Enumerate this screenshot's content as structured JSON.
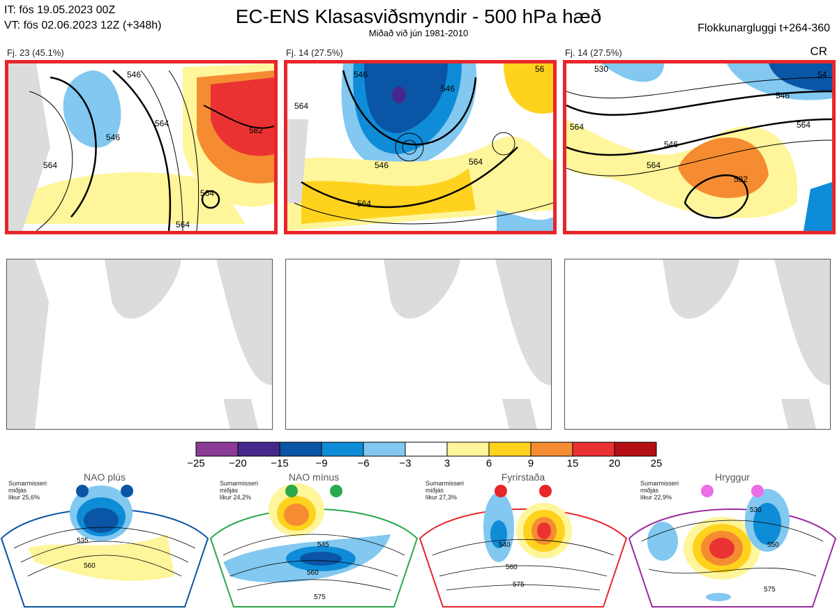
{
  "header": {
    "it_line": "IT: fös 19.05.2023 00Z",
    "vt_line": "VT: fös 02.06.2023 12Z  (+348h)",
    "title": "EC-ENS Klasasviðsmyndir - 500 hPa hæð",
    "subtitle": "Miðað við jún 1981-2010",
    "window": "Flokkunargluggi t+264-360",
    "cr": "CR"
  },
  "panels": [
    {
      "label": "Fj. 23 (45.1%)",
      "highlighted": true,
      "contour_labels": [
        "546",
        "546",
        "564",
        "564",
        "582",
        "564",
        "564"
      ]
    },
    {
      "label": "Fj. 14 (27.5%)",
      "highlighted": true,
      "contour_labels": [
        "546",
        "546",
        "546",
        "564",
        "564",
        "564",
        "56"
      ]
    },
    {
      "label": "Fj. 14 (27.5%)",
      "highlighted": true,
      "contour_labels": [
        "546",
        "564",
        "564",
        "546",
        "564",
        "582",
        "530",
        "54"
      ]
    }
  ],
  "colorbar": {
    "ticks": [
      "−25",
      "−20",
      "−15",
      "−9",
      "−6",
      "−3",
      "3",
      "6",
      "9",
      "15",
      "20",
      "25"
    ],
    "colors": [
      "#8c3c96",
      "#46288c",
      "#0a55a5",
      "#0f8cd7",
      "#82c8f0",
      "#ffffff",
      "#fff59b",
      "#ffd21e",
      "#f58c32",
      "#eb3232",
      "#b40f14"
    ]
  },
  "regimes": [
    {
      "title": "NAO plús",
      "season": "Sumarmisseri",
      "mean": "miðjás",
      "likelihood": "líkur 25,6%",
      "color": "#0a55a5",
      "contours": [
        "535",
        "560"
      ]
    },
    {
      "title": "NAO mínus",
      "season": "Sumarmisseri",
      "mean": "miðjás",
      "likelihood": "líkur 24,2%",
      "color": "#2aa84a",
      "contours": [
        "545",
        "560",
        "575"
      ]
    },
    {
      "title": "Fyrirstaða",
      "season": "Sumarmisseri",
      "mean": "miðjás",
      "likelihood": "líkur 27,3%",
      "color": "#e8262a",
      "contours": [
        "540",
        "560",
        "575"
      ]
    },
    {
      "title": "Hryggur",
      "season": "Sumarmisseri",
      "mean": "miðjás",
      "likelihood": "líkur 22,9%",
      "color": "#ea6ee6",
      "contours": [
        "530",
        "550",
        "575"
      ]
    }
  ]
}
